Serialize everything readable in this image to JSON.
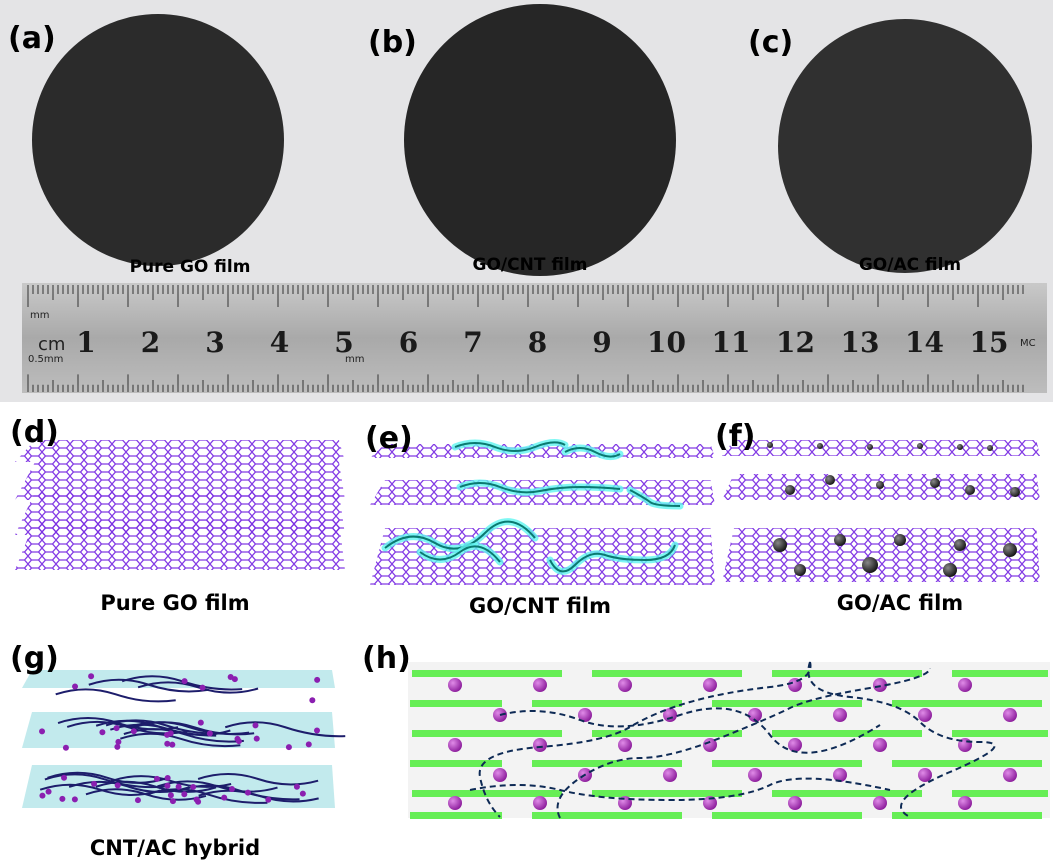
{
  "photo": {
    "panels": [
      {
        "label": "(a)",
        "caption": "Pure GO film"
      },
      {
        "label": "(b)",
        "caption": "GO/CNT film"
      },
      {
        "label": "(c)",
        "caption": "GO/AC film"
      }
    ],
    "ruler": {
      "unit": "cm",
      "numbers": [
        1,
        2,
        3,
        4,
        5,
        6,
        7,
        8,
        9,
        10,
        11,
        12,
        13,
        14,
        15
      ],
      "top_scale": "mm",
      "bottom_scale": "0.5mm",
      "mid_scale": "mm",
      "brand": "MC"
    }
  },
  "schematics": [
    {
      "label": "(d)",
      "caption": "Pure GO film"
    },
    {
      "label": "(e)",
      "caption": "GO/CNT film"
    },
    {
      "label": "(f)",
      "caption": "GO/AC film"
    },
    {
      "label": "(g)",
      "caption": "CNT/AC hybrid"
    },
    {
      "label": "(h)"
    }
  ]
}
